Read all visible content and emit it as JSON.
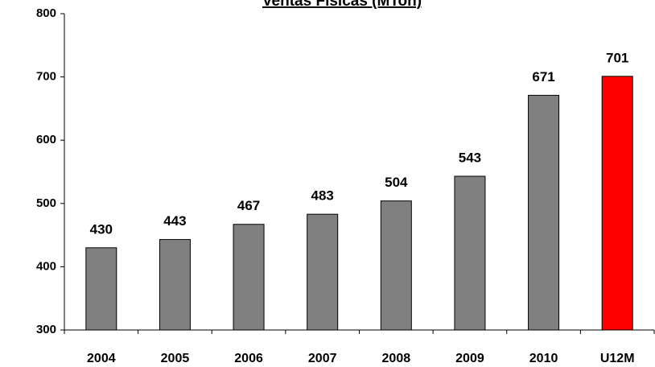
{
  "chart_data": {
    "type": "bar",
    "title": "Ventas Físicas  (MTon)",
    "categories": [
      "2004",
      "2005",
      "2006",
      "2007",
      "2008",
      "2009",
      "2010",
      "U12M"
    ],
    "values": [
      430,
      443,
      467,
      483,
      504,
      543,
      671,
      701
    ],
    "colors": [
      "#808080",
      "#808080",
      "#808080",
      "#808080",
      "#808080",
      "#808080",
      "#808080",
      "#ff0000"
    ],
    "ylim": [
      300,
      800
    ],
    "yticks": [
      300,
      400,
      500,
      600,
      700,
      800
    ],
    "grid": false
  }
}
